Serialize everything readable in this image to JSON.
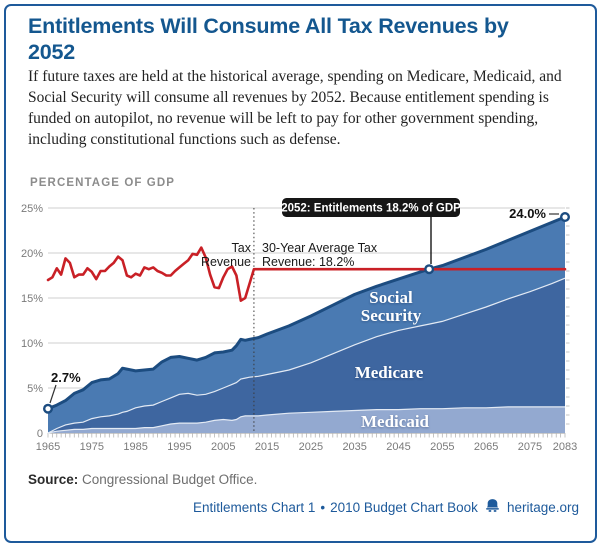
{
  "header": {
    "title": "Entitlements Will Consume All Tax Revenues by 2052",
    "description": "If future taxes are held at the historical average, spending on Medicare, Medicaid, and Social Security will consume all revenues by 2052. Because entitlement spending is funded on autopilot, no revenue will be left to pay for other government spending, including constitutional functions such as defense."
  },
  "axis_title": "PERCENTAGE OF GDP",
  "annotations": {
    "callout": "2052: Entitlements 18.2% of GDP",
    "start_label": "2.7%",
    "end_label": "24.0%",
    "tax_label_line1": "Tax",
    "tax_label_line2": "Revenue",
    "avg_label_line1": "30-Year Average Tax",
    "avg_label_line2": "Revenue: 18.2%",
    "area_social_line1": "Social",
    "area_social_line2": "Security",
    "area_medicare": "Medicare",
    "area_medicaid": "Medicaid"
  },
  "source": {
    "label": "Source:",
    "text": "Congressional Budget Office."
  },
  "footer": {
    "chart_ref": "Entitlements Chart 1",
    "bullet": "•",
    "book_ref": "2010 Budget Chart Book",
    "site": "heritage.org",
    "bell_icon": "liberty-bell"
  },
  "colors": {
    "title_blue": "#14578F",
    "border_blue": "#1E5A9B",
    "tax_line_red": "#C92026",
    "total_line_navy": "#1C4C80",
    "social_security_fill": "#4A7AB2",
    "medicare_fill": "#3E66A0",
    "medicaid_fill": "#93A9D0",
    "separator_white": "#E3EAF4",
    "gridline": "#CFCFCF",
    "baseline": "#9A9A9A",
    "tick_gray": "#7a7a7a",
    "callout_black": "#161616"
  },
  "chart_data": {
    "type": "area",
    "subtype": "stacked-area-with-line",
    "title": "Entitlements Will Consume All Tax Revenues by 2052",
    "ylabel": "PERCENTAGE OF GDP",
    "xlabel": "",
    "ylim": [
      0,
      25
    ],
    "xlim": [
      1965,
      2083
    ],
    "grid": true,
    "divider_year": 2012,
    "y_ticks": [
      {
        "label": "25%",
        "value": 25
      },
      {
        "label": "20%",
        "value": 20
      },
      {
        "label": "15%",
        "value": 15
      },
      {
        "label": "10%",
        "value": 10
      },
      {
        "label": "5%",
        "value": 5
      },
      {
        "label": "0",
        "value": 0
      }
    ],
    "x_ticks": [
      {
        "label": "1965",
        "year": 1965
      },
      {
        "label": "1975",
        "year": 1975
      },
      {
        "label": "1985",
        "year": 1985
      },
      {
        "label": "1995",
        "year": 1995
      },
      {
        "label": "2005",
        "year": 2005
      },
      {
        "label": "2015",
        "year": 2015
      },
      {
        "label": "2025",
        "year": 2025
      },
      {
        "label": "2035",
        "year": 2035
      },
      {
        "label": "2045",
        "year": 2045
      },
      {
        "label": "2055",
        "year": 2055
      },
      {
        "label": "2065",
        "year": 2065
      },
      {
        "label": "2075",
        "year": 2075
      },
      {
        "label": "2083",
        "year": 2083
      }
    ],
    "stacked_series_pct_of_gdp": {
      "years": [
        1965,
        1967,
        1969,
        1971,
        1973,
        1975,
        1977,
        1979,
        1981,
        1982,
        1983,
        1985,
        1987,
        1989,
        1991,
        1993,
        1995,
        1997,
        1999,
        2001,
        2003,
        2005,
        2007,
        2008,
        2009,
        2010,
        2011,
        2013,
        2015,
        2020,
        2025,
        2030,
        2035,
        2040,
        2045,
        2050,
        2052,
        2055,
        2060,
        2065,
        2070,
        2075,
        2080,
        2083
      ],
      "medicaid_top": [
        0.0,
        0.2,
        0.3,
        0.4,
        0.4,
        0.5,
        0.5,
        0.5,
        0.5,
        0.5,
        0.5,
        0.5,
        0.6,
        0.6,
        0.8,
        1.0,
        1.1,
        1.1,
        1.1,
        1.2,
        1.4,
        1.5,
        1.4,
        1.5,
        1.8,
        1.9,
        1.9,
        1.9,
        2.0,
        2.2,
        2.3,
        2.4,
        2.5,
        2.6,
        2.6,
        2.7,
        2.7,
        2.7,
        2.8,
        2.8,
        2.9,
        2.9,
        2.9,
        2.9
      ],
      "medicare_cumulative_top": [
        0.0,
        0.5,
        0.9,
        1.1,
        1.2,
        1.6,
        1.8,
        1.9,
        2.1,
        2.3,
        2.4,
        2.8,
        3.0,
        3.1,
        3.5,
        3.9,
        4.3,
        4.4,
        4.2,
        4.3,
        4.6,
        5.0,
        5.4,
        5.6,
        6.0,
        6.1,
        6.2,
        6.3,
        6.5,
        7.0,
        7.8,
        8.8,
        9.8,
        10.7,
        11.4,
        11.9,
        12.1,
        12.4,
        13.2,
        14.0,
        14.9,
        15.7,
        16.6,
        17.2
      ],
      "total_entitlements": [
        2.7,
        3.1,
        3.6,
        4.4,
        4.8,
        5.6,
        5.9,
        6.0,
        6.6,
        7.2,
        7.1,
        6.9,
        7.0,
        7.1,
        7.9,
        8.4,
        8.5,
        8.3,
        8.1,
        8.4,
        8.9,
        9.0,
        9.2,
        9.7,
        10.4,
        10.3,
        10.4,
        10.6,
        11.0,
        11.9,
        13.0,
        14.2,
        15.4,
        16.3,
        17.1,
        17.9,
        18.2,
        18.6,
        19.5,
        20.4,
        21.4,
        22.4,
        23.4,
        24.0
      ]
    },
    "tax_revenue_line": {
      "name": "Tax Revenue",
      "years": [
        1965,
        1966,
        1967,
        1968,
        1969,
        1970,
        1971,
        1972,
        1973,
        1974,
        1975,
        1976,
        1977,
        1978,
        1979,
        1980,
        1981,
        1982,
        1983,
        1984,
        1985,
        1986,
        1987,
        1988,
        1989,
        1990,
        1991,
        1992,
        1993,
        1994,
        1995,
        1996,
        1997,
        1998,
        1999,
        2000,
        2001,
        2002,
        2003,
        2004,
        2005,
        2006,
        2007,
        2008,
        2009,
        2010,
        2012,
        2083
      ],
      "values": [
        17.0,
        17.3,
        18.3,
        17.6,
        19.4,
        18.9,
        17.3,
        17.6,
        17.6,
        18.3,
        17.9,
        17.1,
        18.0,
        18.0,
        18.5,
        18.9,
        19.6,
        19.2,
        17.5,
        17.3,
        17.7,
        17.5,
        18.4,
        18.2,
        18.4,
        18.0,
        17.8,
        17.5,
        17.5,
        18.0,
        18.4,
        18.8,
        19.2,
        19.9,
        19.8,
        20.6,
        19.5,
        17.6,
        16.2,
        16.1,
        17.3,
        18.2,
        18.5,
        17.5,
        14.7,
        15.0,
        18.2,
        18.2
      ],
      "average_after_divider": 18.2
    },
    "markers": [
      {
        "year": 1965,
        "pct": 2.7
      },
      {
        "year": 2052,
        "pct": 18.2
      },
      {
        "year": 2083,
        "pct": 24.0
      }
    ]
  }
}
